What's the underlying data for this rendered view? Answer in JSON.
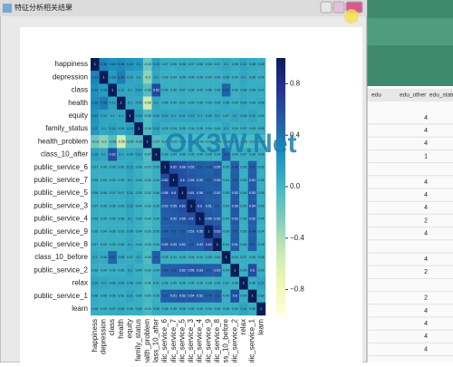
{
  "window_title": "特征分析相关结果",
  "watermark": "OK3W.Net",
  "sheet": {
    "header": [
      "edu",
      "edu_other",
      "edu_status"
    ],
    "edu_other": [
      4,
      4,
      4,
      1,
      null,
      4,
      4,
      4,
      2,
      4,
      null,
      4,
      2,
      null,
      2,
      4,
      4,
      4,
      4
    ]
  },
  "chart_data": {
    "type": "heatmap",
    "categories": [
      "happiness",
      "depression",
      "class",
      "health",
      "equity",
      "family_status",
      "health_problem",
      "class_10_after",
      "public_service_6",
      "public_service_7",
      "public_service_5",
      "public_service_3",
      "public_service_4",
      "public_service_9",
      "public_service_8",
      "class_10_before",
      "public_service_2",
      "relax",
      "public_service_1",
      "learn"
    ],
    "values": [
      [
        1,
        0.32,
        0.25,
        0.28,
        0.22,
        0.2,
        -0.18,
        0.15,
        0.07,
        0.06,
        0.08,
        0.07,
        0.06,
        0.05,
        0.07,
        0.1,
        0.06,
        0.12,
        0.08,
        0.06
      ],
      [
        0.32,
        1,
        0.18,
        0.35,
        0.12,
        0.1,
        -0.3,
        0.1,
        0.05,
        0.04,
        0.06,
        0.05,
        0.05,
        0.04,
        0.05,
        0.08,
        0.04,
        0.1,
        0.06,
        0.05
      ],
      [
        0.25,
        0.18,
        1,
        0.12,
        0.1,
        0.14,
        -0.08,
        0.62,
        0.06,
        0.05,
        0.07,
        0.06,
        0.05,
        0.06,
        0.05,
        0.47,
        0.05,
        0.08,
        0.06,
        0.07
      ],
      [
        0.28,
        0.35,
        0.12,
        1,
        0.1,
        0.09,
        -0.55,
        0.1,
        0.06,
        0.05,
        0.07,
        0.05,
        0.06,
        0.05,
        0.06,
        0.08,
        0.05,
        0.09,
        0.06,
        0.08
      ],
      [
        0.22,
        0.12,
        0.1,
        0.1,
        1,
        0.15,
        -0.05,
        0.09,
        0.12,
        0.1,
        0.11,
        0.12,
        0.1,
        0.09,
        0.1,
        0.07,
        0.1,
        0.08,
        0.11,
        0.05
      ],
      [
        0.2,
        0.1,
        0.14,
        0.09,
        0.15,
        1,
        -0.06,
        0.12,
        0.05,
        0.04,
        0.05,
        0.04,
        0.05,
        0.04,
        0.04,
        0.1,
        0.04,
        0.07,
        0.05,
        0.06
      ],
      [
        -0.18,
        -0.3,
        -0.08,
        -0.55,
        -0.05,
        -0.06,
        1,
        -0.07,
        -0.03,
        -0.02,
        -0.03,
        -0.02,
        -0.03,
        -0.02,
        -0.03,
        -0.06,
        -0.02,
        -0.05,
        -0.03,
        -0.04
      ],
      [
        0.15,
        0.1,
        0.62,
        0.1,
        0.09,
        0.12,
        -0.07,
        1,
        0.05,
        0.04,
        0.06,
        0.05,
        0.04,
        0.05,
        0.04,
        0.5,
        0.04,
        0.07,
        0.05,
        0.06
      ],
      [
        0.07,
        0.05,
        0.06,
        0.06,
        0.12,
        0.05,
        -0.03,
        0.05,
        1,
        0.62,
        0.58,
        0.52,
        0.5,
        0.48,
        0.55,
        0.05,
        0.49,
        0.06,
        0.5,
        0.06
      ],
      [
        0.06,
        0.04,
        0.05,
        0.05,
        0.1,
        0.04,
        -0.02,
        0.04,
        0.62,
        1,
        0.6,
        0.55,
        0.52,
        0.5,
        0.53,
        0.04,
        0.5,
        0.05,
        0.51,
        0.05
      ],
      [
        0.08,
        0.06,
        0.07,
        0.07,
        0.11,
        0.05,
        -0.03,
        0.06,
        0.58,
        0.6,
        1,
        0.61,
        0.56,
        0.5,
        0.52,
        0.05,
        0.52,
        0.06,
        0.53,
        0.06
      ],
      [
        0.07,
        0.05,
        0.06,
        0.05,
        0.12,
        0.04,
        -0.02,
        0.05,
        0.52,
        0.55,
        0.61,
        1,
        0.6,
        0.51,
        0.5,
        0.04,
        0.55,
        0.05,
        0.54,
        0.05
      ],
      [
        0.06,
        0.05,
        0.05,
        0.06,
        0.1,
        0.05,
        -0.03,
        0.04,
        0.5,
        0.52,
        0.56,
        0.6,
        1,
        0.55,
        0.52,
        0.04,
        0.53,
        0.05,
        0.52,
        0.05
      ],
      [
        0.05,
        0.04,
        0.06,
        0.05,
        0.09,
        0.04,
        -0.02,
        0.05,
        0.48,
        0.5,
        0.5,
        0.51,
        0.55,
        1,
        0.63,
        0.05,
        0.5,
        0.05,
        0.49,
        0.04
      ],
      [
        0.07,
        0.05,
        0.05,
        0.06,
        0.1,
        0.04,
        -0.03,
        0.04,
        0.55,
        0.53,
        0.52,
        0.5,
        0.52,
        0.63,
        1,
        0.04,
        0.51,
        0.06,
        0.5,
        0.05
      ],
      [
        0.1,
        0.08,
        0.47,
        0.08,
        0.07,
        0.1,
        -0.06,
        0.5,
        0.05,
        0.04,
        0.05,
        0.04,
        0.04,
        0.05,
        0.04,
        1,
        0.04,
        0.07,
        0.05,
        0.06
      ],
      [
        0.06,
        0.04,
        0.05,
        0.05,
        0.1,
        0.04,
        -0.02,
        0.04,
        0.49,
        0.5,
        0.52,
        0.55,
        0.53,
        0.5,
        0.51,
        0.04,
        1,
        0.05,
        0.6,
        0.05
      ],
      [
        0.12,
        0.1,
        0.08,
        0.09,
        0.08,
        0.07,
        -0.05,
        0.07,
        0.06,
        0.05,
        0.06,
        0.05,
        0.05,
        0.05,
        0.06,
        0.07,
        0.05,
        1,
        0.06,
        0.12
      ],
      [
        0.08,
        0.06,
        0.06,
        0.06,
        0.11,
        0.05,
        -0.03,
        0.05,
        0.5,
        0.51,
        0.53,
        0.54,
        0.52,
        0.49,
        0.5,
        0.05,
        0.6,
        0.06,
        1,
        0.06
      ],
      [
        0.06,
        0.05,
        0.07,
        0.08,
        0.05,
        0.06,
        -0.04,
        0.06,
        0.06,
        0.05,
        0.06,
        0.05,
        0.05,
        0.04,
        0.05,
        0.06,
        0.05,
        0.12,
        0.06,
        1
      ]
    ],
    "colormap": [
      "#ffffd9",
      "#edf8b1",
      "#c7e9b4",
      "#7fcdbb",
      "#41b6c4",
      "#1d91c0",
      "#225ea8",
      "#253494",
      "#081d58"
    ],
    "clim": [
      -1,
      1
    ],
    "cticks": [
      0.8,
      0.4,
      {
        "value": 0,
        "label": "0.0"
      },
      {
        "value": -0.4,
        "label": "−0.4"
      },
      {
        "value": -0.8,
        "label": "−0.8"
      }
    ]
  }
}
